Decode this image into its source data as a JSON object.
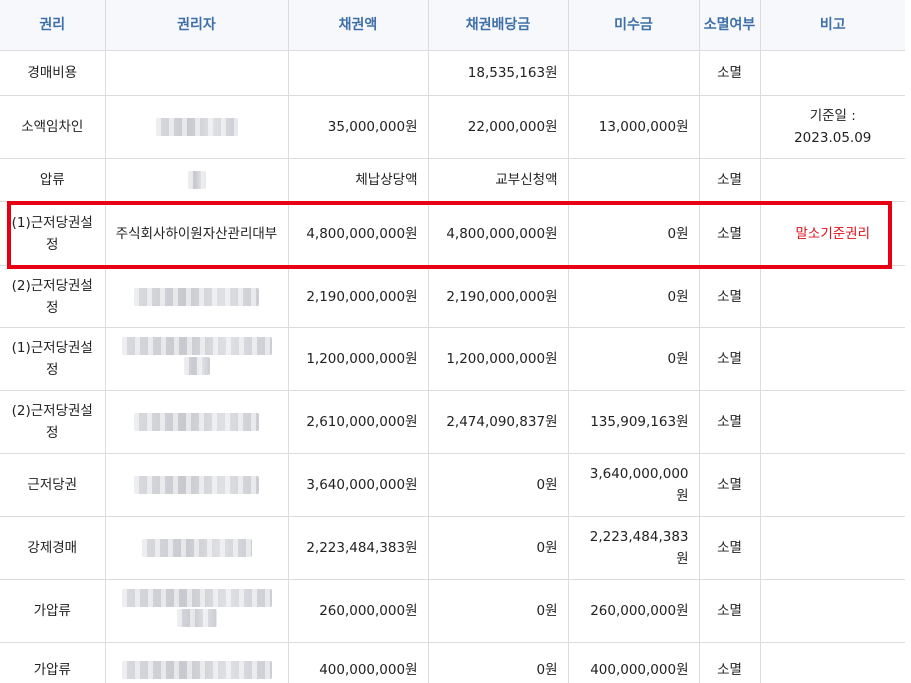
{
  "headers": {
    "right": "권리",
    "holder": "권리자",
    "claim": "채권액",
    "dividend": "채권배당금",
    "unpaid": "미수금",
    "extinction": "소멸여부",
    "note": "비고"
  },
  "rows": [
    {
      "right": "경매비용",
      "claim": "",
      "dividend": "18,535,163원",
      "unpaid": "",
      "extinction": "소멸",
      "note": ""
    },
    {
      "right": "소액임차인",
      "claim": "35,000,000원",
      "dividend": "22,000,000원",
      "unpaid": "13,000,000원",
      "extinction": "",
      "note": "기준일 : 2023.05.09"
    },
    {
      "right": "압류",
      "claim": "체납상당액",
      "dividend": "교부신청액",
      "unpaid": "",
      "extinction": "소멸",
      "note": ""
    },
    {
      "right": "(1)근저당권설정",
      "holder": "주식회사하이원자산관리대부",
      "claim": "4,800,000,000원",
      "dividend": "4,800,000,000원",
      "unpaid": "0원",
      "extinction": "소멸",
      "note": "말소기준권리"
    },
    {
      "right": "(2)근저당권설정",
      "claim": "2,190,000,000원",
      "dividend": "2,190,000,000원",
      "unpaid": "0원",
      "extinction": "소멸",
      "note": ""
    },
    {
      "right": "(1)근저당권설정",
      "claim": "1,200,000,000원",
      "dividend": "1,200,000,000원",
      "unpaid": "0원",
      "extinction": "소멸",
      "note": ""
    },
    {
      "right": "(2)근저당권설정",
      "claim": "2,610,000,000원",
      "dividend": "2,474,090,837원",
      "unpaid": "135,909,163원",
      "extinction": "소멸",
      "note": ""
    },
    {
      "right": "근저당권",
      "claim": "3,640,000,000원",
      "dividend": "0원",
      "unpaid": "3,640,000,000원",
      "extinction": "소멸",
      "note": ""
    },
    {
      "right": "강제경매",
      "claim": "2,223,484,383원",
      "dividend": "0원",
      "unpaid": "2,223,484,383원",
      "extinction": "소멸",
      "note": ""
    },
    {
      "right": "가압류",
      "claim": "260,000,000원",
      "dividend": "0원",
      "unpaid": "260,000,000원",
      "extinction": "소멸",
      "note": ""
    },
    {
      "right": "가압류",
      "claim": "400,000,000원",
      "dividend": "0원",
      "unpaid": "400,000,000원",
      "extinction": "소멸",
      "note": ""
    }
  ],
  "colors": {
    "header_text": "#3f6fa8",
    "header_bg": "#f6f8fb",
    "highlight_border": "#e60012",
    "note_red": "#e0101b"
  }
}
